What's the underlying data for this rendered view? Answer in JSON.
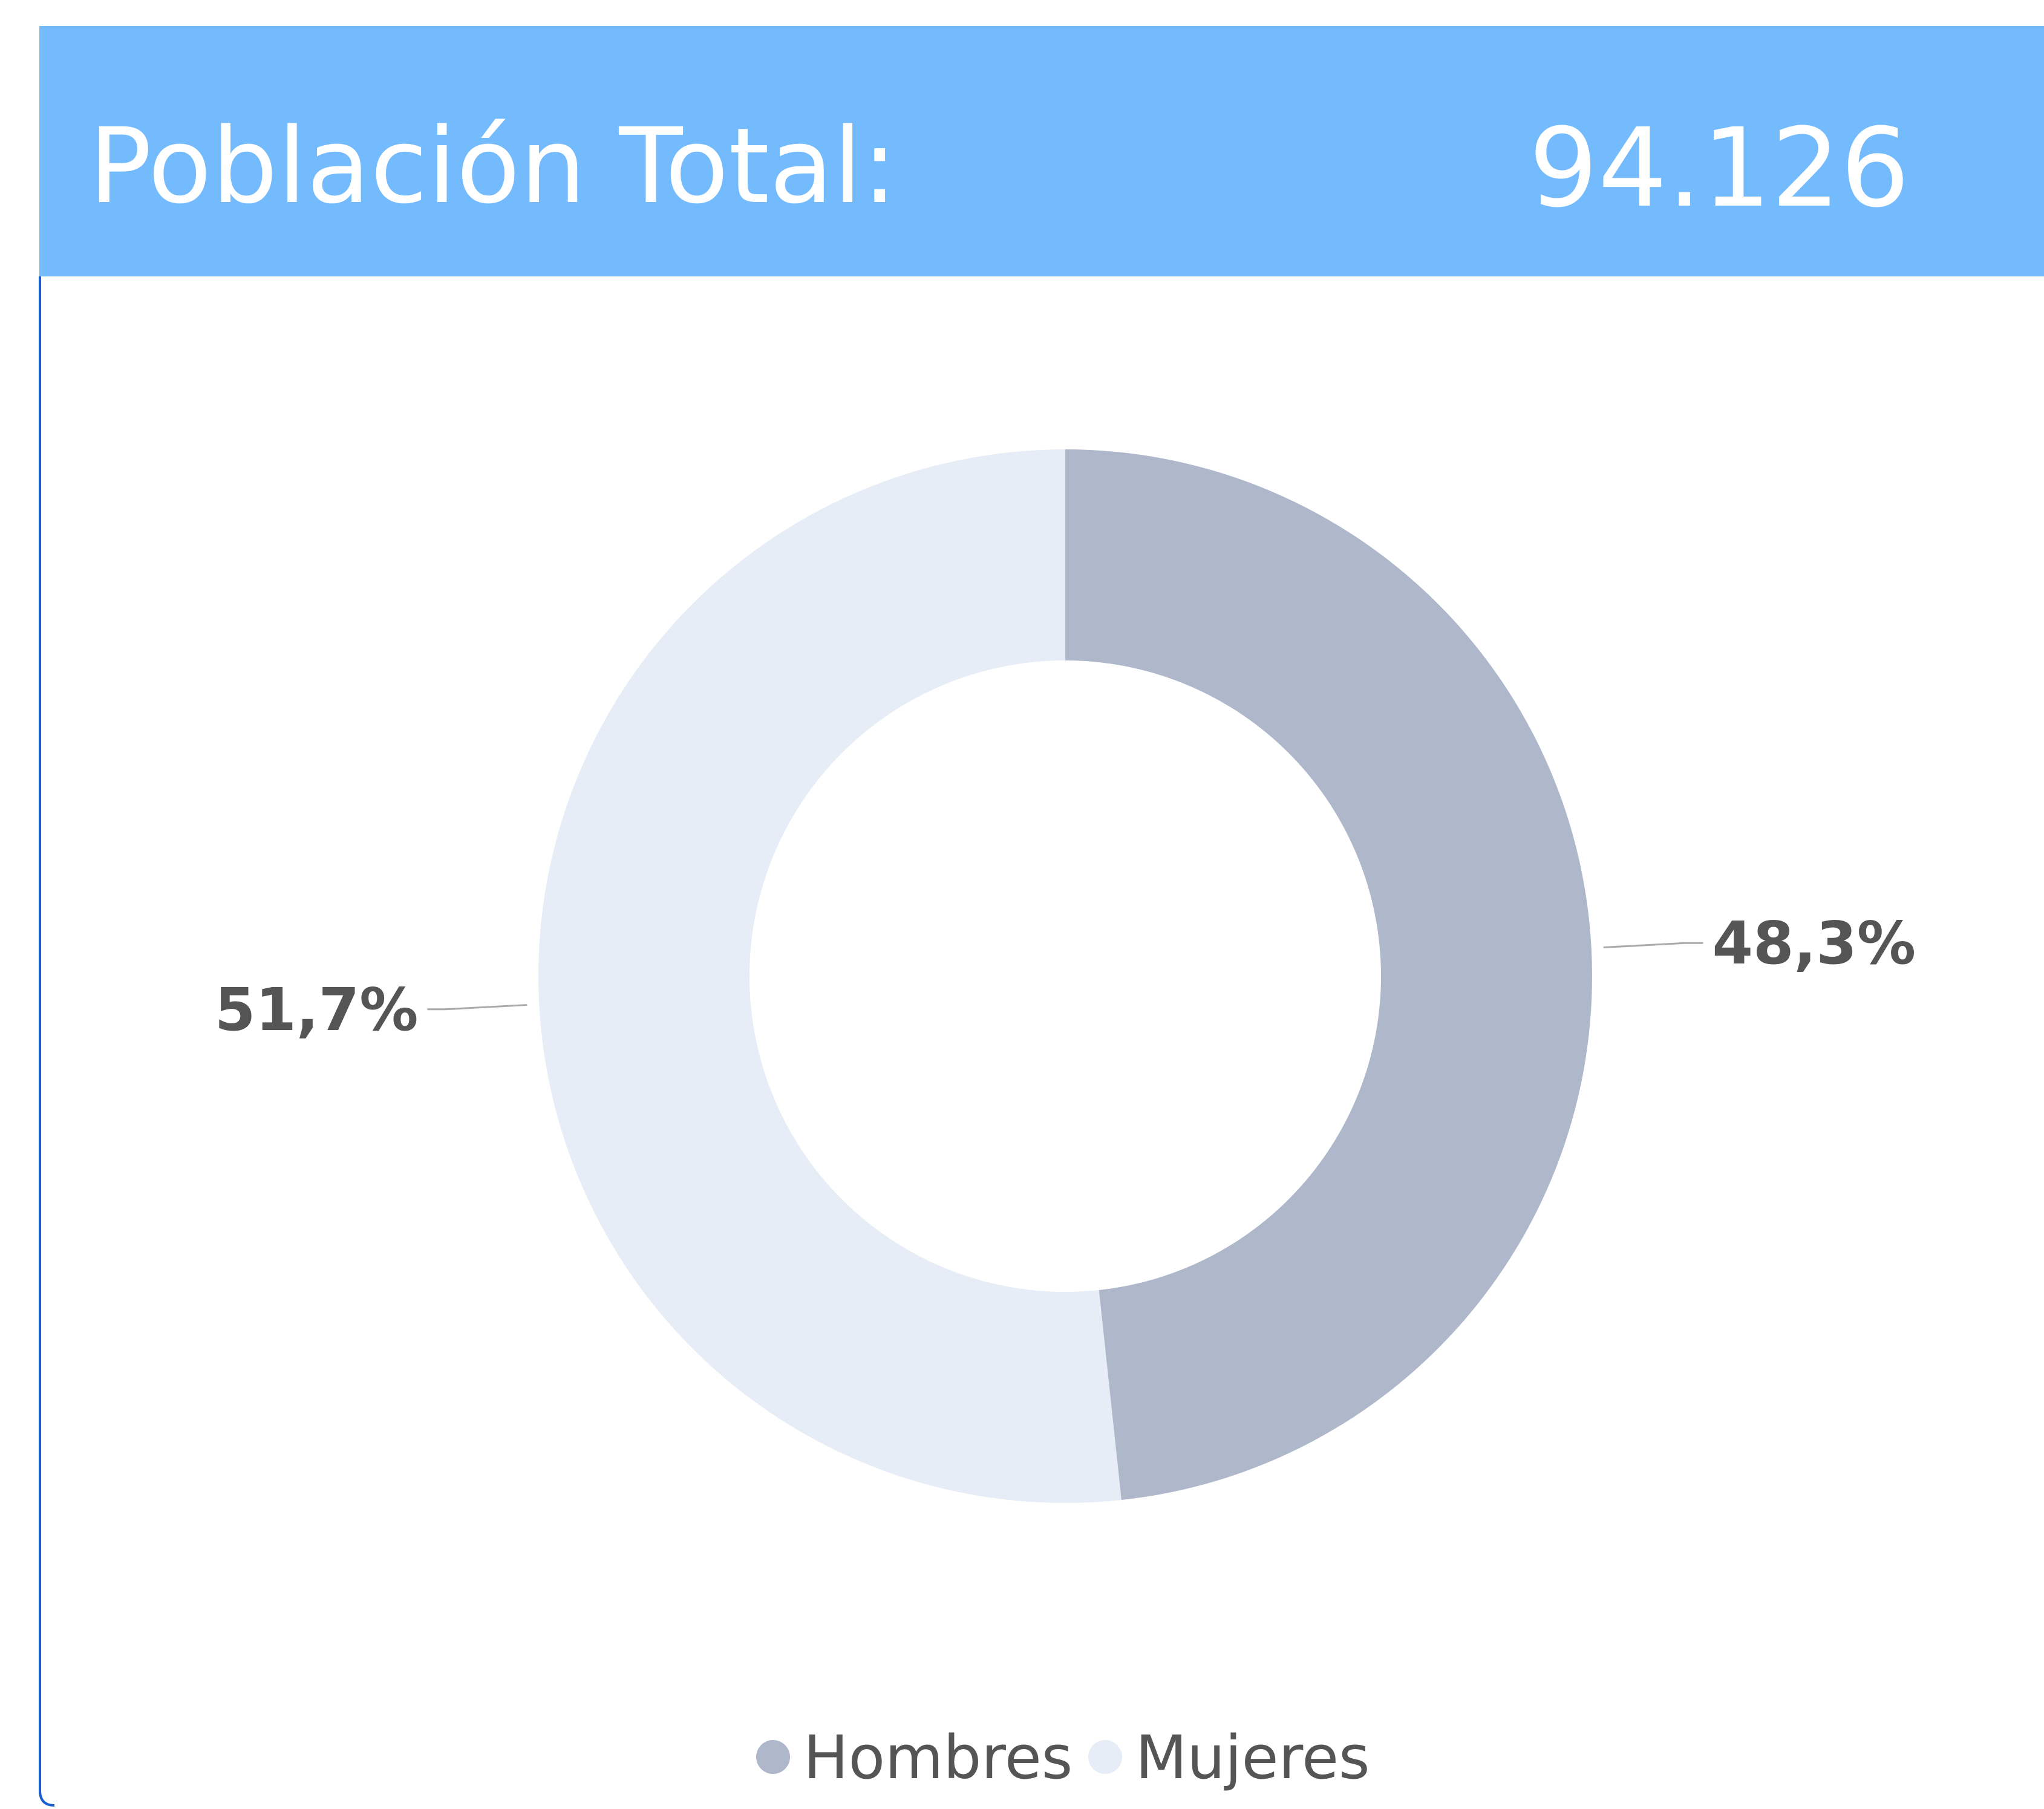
{
  "header": {
    "title": "Población Total:",
    "value": "94.126"
  },
  "chart_data": {
    "type": "donut",
    "categories": [
      "Hombres",
      "Mujeres"
    ],
    "values": [
      48.3,
      51.7
    ],
    "value_labels": [
      "48,3%",
      "51,7%"
    ],
    "colors": [
      "#aeb8ca",
      "#e6edf6"
    ],
    "legend": "bottom"
  }
}
